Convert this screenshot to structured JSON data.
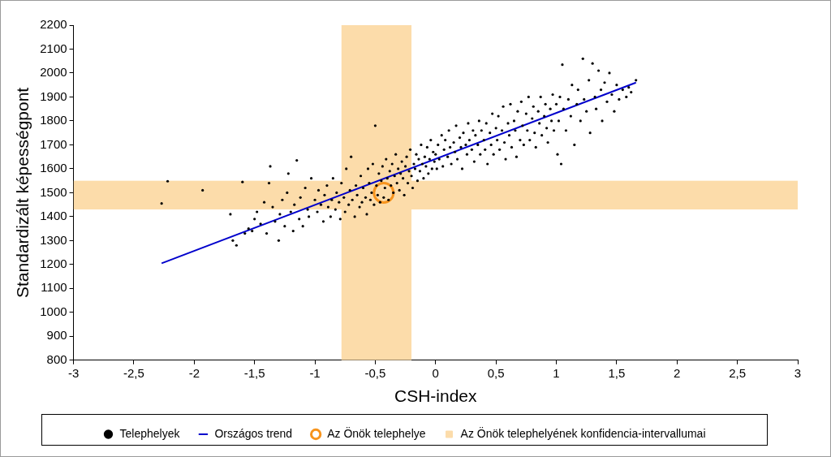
{
  "chart_data": {
    "type": "scatter",
    "x_label": "CSH-index",
    "y_label": "Standardizált képességpont",
    "xlim": [
      -3,
      3
    ],
    "ylim": [
      800,
      2200
    ],
    "xticks": [
      -3,
      {
        "value": -2.5,
        "label": "-2,5"
      },
      -2,
      {
        "value": -1.5,
        "label": "-1,5"
      },
      -1,
      {
        "value": -0.5,
        "label": "-0,5"
      },
      0,
      {
        "value": 0.5,
        "label": "0,5"
      },
      1,
      {
        "value": 1.5,
        "label": "1,5"
      },
      2,
      {
        "value": 2.5,
        "label": "2,5"
      },
      3
    ],
    "yticks": [
      800,
      900,
      1000,
      1100,
      1200,
      1300,
      1400,
      1500,
      1600,
      1700,
      1800,
      1900,
      2000,
      2100,
      2200
    ],
    "grid": false,
    "legend": "bottom",
    "series": [
      {
        "name": "Telephelyek",
        "type": "scatter",
        "marker": "circle",
        "color": "#000000",
        "x": [
          -2.27,
          -2.22,
          -1.93,
          -1.7,
          -1.68,
          -1.65,
          -1.6,
          -1.58,
          -1.55,
          -1.52,
          -1.5,
          -1.48,
          -1.45,
          -1.42,
          -1.4,
          -1.38,
          -1.37,
          -1.35,
          -1.33,
          -1.3,
          -1.29,
          -1.27,
          -1.25,
          -1.23,
          -1.22,
          -1.2,
          -1.18,
          -1.17,
          -1.15,
          -1.13,
          -1.12,
          -1.1,
          -1.08,
          -1.06,
          -1.05,
          -1.03,
          -1.0,
          -0.98,
          -0.97,
          -0.95,
          -0.93,
          -0.92,
          -0.9,
          -0.89,
          -0.87,
          -0.86,
          -0.85,
          -0.83,
          -0.82,
          -0.8,
          -0.79,
          -0.78,
          -0.76,
          -0.75,
          -0.74,
          -0.72,
          -0.71,
          -0.7,
          -0.69,
          -0.67,
          -0.66,
          -0.65,
          -0.63,
          -0.62,
          -0.61,
          -0.6,
          -0.58,
          -0.57,
          -0.56,
          -0.55,
          -0.54,
          -0.53,
          -0.52,
          -0.51,
          -0.5,
          -0.49,
          -0.48,
          -0.47,
          -0.46,
          -0.45,
          -0.44,
          -0.43,
          -0.42,
          -0.41,
          -0.4,
          -0.39,
          -0.38,
          -0.37,
          -0.36,
          -0.35,
          -0.34,
          -0.33,
          -0.32,
          -0.31,
          -0.3,
          -0.29,
          -0.28,
          -0.27,
          -0.26,
          -0.25,
          -0.24,
          -0.23,
          -0.22,
          -0.21,
          -0.2,
          -0.19,
          -0.18,
          -0.17,
          -0.16,
          -0.15,
          -0.14,
          -0.13,
          -0.12,
          -0.11,
          -0.1,
          -0.09,
          -0.08,
          -0.07,
          -0.06,
          -0.05,
          -0.04,
          -0.03,
          -0.02,
          -0.01,
          0,
          0.01,
          0.02,
          0.03,
          0.05,
          0.06,
          0.07,
          0.08,
          0.1,
          0.11,
          0.12,
          0.13,
          0.15,
          0.16,
          0.17,
          0.18,
          0.2,
          0.21,
          0.22,
          0.23,
          0.25,
          0.26,
          0.27,
          0.28,
          0.3,
          0.31,
          0.32,
          0.33,
          0.35,
          0.36,
          0.37,
          0.38,
          0.4,
          0.41,
          0.42,
          0.43,
          0.45,
          0.46,
          0.47,
          0.48,
          0.5,
          0.51,
          0.52,
          0.53,
          0.55,
          0.56,
          0.57,
          0.58,
          0.6,
          0.61,
          0.62,
          0.63,
          0.65,
          0.66,
          0.67,
          0.68,
          0.7,
          0.71,
          0.72,
          0.73,
          0.75,
          0.76,
          0.77,
          0.78,
          0.8,
          0.81,
          0.82,
          0.83,
          0.85,
          0.86,
          0.87,
          0.88,
          0.9,
          0.91,
          0.92,
          0.93,
          0.95,
          0.96,
          0.97,
          0.98,
          1.0,
          1.01,
          1.02,
          1.03,
          1.04,
          1.05,
          1.06,
          1.08,
          1.1,
          1.12,
          1.13,
          1.15,
          1.17,
          1.18,
          1.2,
          1.22,
          1.23,
          1.25,
          1.27,
          1.28,
          1.3,
          1.32,
          1.33,
          1.35,
          1.37,
          1.38,
          1.4,
          1.42,
          1.44,
          1.46,
          1.48,
          1.5,
          1.52,
          1.55,
          1.58,
          1.6,
          1.62,
          1.66
        ],
        "values": [
          1455,
          1548,
          1510,
          1410,
          1300,
          1280,
          1545,
          1330,
          1350,
          1340,
          1390,
          1420,
          1370,
          1460,
          1330,
          1540,
          1610,
          1440,
          1380,
          1300,
          1410,
          1470,
          1360,
          1500,
          1580,
          1420,
          1340,
          1450,
          1635,
          1390,
          1480,
          1360,
          1520,
          1430,
          1400,
          1560,
          1470,
          1420,
          1510,
          1450,
          1380,
          1490,
          1530,
          1440,
          1400,
          1470,
          1560,
          1430,
          1500,
          1460,
          1390,
          1540,
          1480,
          1420,
          1600,
          1450,
          1510,
          1650,
          1470,
          1400,
          1530,
          1490,
          1440,
          1570,
          1460,
          1520,
          1480,
          1410,
          1600,
          1540,
          1470,
          1500,
          1620,
          1450,
          1780,
          1530,
          1490,
          1580,
          1460,
          1550,
          1610,
          1480,
          1520,
          1640,
          1560,
          1470,
          1590,
          1530,
          1620,
          1500,
          1570,
          1660,
          1540,
          1600,
          1510,
          1580,
          1630,
          1560,
          1490,
          1610,
          1650,
          1540,
          1590,
          1680,
          1570,
          1520,
          1620,
          1600,
          1660,
          1550,
          1640,
          1590,
          1700,
          1620,
          1560,
          1650,
          1610,
          1690,
          1580,
          1640,
          1720,
          1600,
          1670,
          1630,
          1660,
          1600,
          1700,
          1640,
          1740,
          1610,
          1680,
          1720,
          1650,
          1760,
          1690,
          1620,
          1710,
          1670,
          1780,
          1640,
          1730,
          1690,
          1600,
          1750,
          1700,
          1660,
          1790,
          1720,
          1680,
          1760,
          1630,
          1740,
          1700,
          1800,
          1660,
          1760,
          1720,
          1680,
          1790,
          1620,
          1750,
          1700,
          1830,
          1660,
          1770,
          1720,
          1820,
          1680,
          1760,
          1860,
          1710,
          1640,
          1790,
          1740,
          1870,
          1690,
          1800,
          1760,
          1650,
          1840,
          1720,
          1880,
          1780,
          1700,
          1830,
          1760,
          1900,
          1720,
          1810,
          1860,
          1750,
          1690,
          1840,
          1790,
          1900,
          1740,
          1820,
          1870,
          1770,
          1710,
          1850,
          1800,
          1910,
          1760,
          1870,
          1660,
          1800,
          1900,
          1620,
          2035,
          1850,
          1760,
          1890,
          1820,
          1950,
          1700,
          1870,
          1930,
          1800,
          2060,
          1890,
          1840,
          1970,
          1750,
          2040,
          1900,
          1850,
          2010,
          1930,
          1800,
          1960,
          1880,
          2000,
          1910,
          1840,
          1950,
          1890,
          1930,
          1900,
          1940,
          1920,
          1970
        ]
      },
      {
        "name": "Országos trend",
        "type": "line",
        "color": "#0000cc",
        "x": [
          -2.27,
          1.66
        ],
        "values": [
          1205,
          1960
        ]
      },
      {
        "name": "Az Önök telephelye",
        "type": "scatter",
        "marker": "ring",
        "color": "#f7941d",
        "x": [
          -0.43
        ],
        "values": [
          1500
        ]
      },
      {
        "name": "Az Önök telephelyének konfidencia-intervallumai",
        "type": "band",
        "color": "#fcdcaa",
        "x_range": [
          -0.78,
          -0.2
        ],
        "y_range": [
          1430,
          1550
        ]
      }
    ]
  }
}
